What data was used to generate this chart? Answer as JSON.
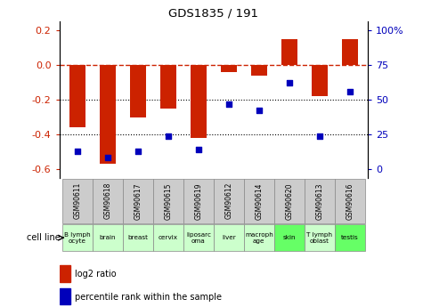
{
  "title": "GDS1835 / 191",
  "samples": [
    "GSM90611",
    "GSM90618",
    "GSM90617",
    "GSM90615",
    "GSM90619",
    "GSM90612",
    "GSM90614",
    "GSM90620",
    "GSM90613",
    "GSM90616"
  ],
  "cell_lines": [
    "B lymph\nocyte",
    "brain",
    "breast",
    "cervix",
    "liposarc\noma",
    "liver",
    "macroph\nage",
    "skin",
    "T lymph\noblast",
    "testis"
  ],
  "cell_colors": [
    "#ccffcc",
    "#ccffcc",
    "#ccffcc",
    "#ccffcc",
    "#ccffcc",
    "#ccffcc",
    "#ccffcc",
    "#66ff66",
    "#ccffcc",
    "#66ff66"
  ],
  "log2_ratio": [
    -0.36,
    -0.57,
    -0.3,
    -0.25,
    -0.42,
    -0.04,
    -0.06,
    0.15,
    -0.18,
    0.15
  ],
  "percentile_rank": [
    17,
    13,
    17,
    27,
    18,
    47,
    43,
    61,
    27,
    55
  ],
  "ylim_left": [
    -0.65,
    0.25
  ],
  "ylim_right": [
    0,
    100
  ],
  "yticks_left": [
    0.2,
    0.0,
    -0.2,
    -0.4,
    -0.6
  ],
  "yticks_right_vals": [
    100,
    75,
    50,
    25,
    0
  ],
  "yticks_right_labels": [
    "100%",
    "75",
    "50",
    "25",
    "0"
  ],
  "bar_color": "#cc2200",
  "dot_color": "#0000bb",
  "dashed_line_color": "#cc2200",
  "grid_color": "#000000",
  "background_chart": "#ffffff",
  "bar_width": 0.55,
  "gsm_bg_color": "#cccccc",
  "cell_line_border_color": "#aaaaaa"
}
